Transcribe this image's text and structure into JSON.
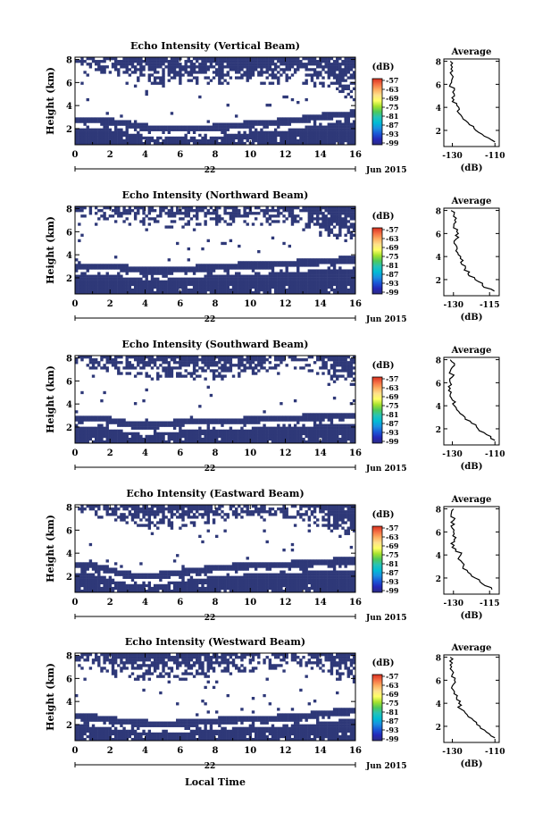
{
  "figure": {
    "x_axis_title": "Local Time",
    "colorbar_unit": "(dB)",
    "colorbar_ticks": [
      "-57",
      "-63",
      "-69",
      "-75",
      "-81",
      "-87",
      "-93",
      "-99"
    ],
    "colorbar_colors": [
      "#d7301f",
      "#f46d43",
      "#fdae61",
      "#fee08b",
      "#ffff66",
      "#a6e22e",
      "#4ec95a",
      "#27c2b6",
      "#00bcd4",
      "#1a8fe0",
      "#1a57d6",
      "#2428b8",
      "#2b2b82"
    ],
    "field_color": "#2e3878",
    "avg_title": "Average",
    "avg_xlabel": "(dB)",
    "date_left": "22",
    "date_right": "Jun 2015"
  },
  "chart_data": [
    {
      "type": "heatmap",
      "title": "Echo Intensity (Vertical Beam)",
      "xlabel": "",
      "ylabel": "Height (km)",
      "x_ticks": [
        0,
        2,
        4,
        6,
        8,
        10,
        12,
        14,
        16
      ],
      "y_ticks": [
        2,
        4,
        6,
        8
      ],
      "xlim": [
        0,
        16
      ],
      "ylim": [
        0.6,
        8.2
      ],
      "lower_layer_top_km": [
        3.0,
        3.0,
        2.9,
        2.7,
        2.4,
        2.3,
        2.3,
        2.3,
        2.4,
        2.5,
        2.7,
        2.8,
        2.9,
        3.1,
        3.3,
        3.5,
        3.6
      ],
      "upper_layer_base_km": [
        7.2,
        7.0,
        6.6,
        6.0,
        5.8,
        5.7,
        5.8,
        5.8,
        5.8,
        5.8,
        5.7,
        5.8,
        6.0,
        5.9,
        5.5,
        4.9,
        4.4
      ],
      "average_profile": {
        "x_ticks": [
          -130,
          -110
        ],
        "xlim": [
          -134,
          -108
        ],
        "y_ticks": [
          2,
          4,
          6,
          8
        ],
        "ylim": [
          0.6,
          8.2
        ],
        "height_km": [
          8.0,
          7.5,
          7.0,
          6.5,
          6.0,
          5.5,
          5.0,
          4.5,
          4.0,
          3.5,
          3.0,
          2.5,
          2.0,
          1.5,
          1.0
        ],
        "db": [
          -131,
          -130,
          -131,
          -130,
          -131,
          -129,
          -129,
          -130,
          -127,
          -127,
          -125,
          -122,
          -119,
          -115,
          -110
        ]
      }
    },
    {
      "type": "heatmap",
      "title": "Echo Intensity (Northward Beam)",
      "xlabel": "",
      "ylabel": "Height (km)",
      "x_ticks": [
        0,
        2,
        4,
        6,
        8,
        10,
        12,
        14,
        16
      ],
      "y_ticks": [
        2,
        4,
        6,
        8
      ],
      "xlim": [
        0,
        16
      ],
      "ylim": [
        0.6,
        8.2
      ],
      "lower_layer_top_km": [
        3.2,
        3.3,
        3.3,
        3.1,
        2.9,
        2.9,
        3.0,
        3.1,
        3.2,
        3.3,
        3.4,
        3.4,
        3.5,
        3.6,
        3.7,
        3.8,
        3.9
      ],
      "upper_layer_base_km": [
        7.4,
        7.1,
        6.9,
        6.6,
        6.5,
        6.4,
        6.4,
        6.5,
        6.5,
        6.6,
        6.6,
        6.6,
        6.5,
        6.2,
        5.7,
        5.4,
        5.3
      ],
      "average_profile": {
        "x_ticks": [
          -130,
          -115
        ],
        "xlim": [
          -134,
          -111
        ],
        "y_ticks": [
          2,
          4,
          6,
          8
        ],
        "ylim": [
          0.6,
          8.2
        ],
        "height_km": [
          8.0,
          7.5,
          7.0,
          6.5,
          6.0,
          5.5,
          5.0,
          4.5,
          4.0,
          3.5,
          3.0,
          2.5,
          2.0,
          1.5,
          1.0
        ],
        "db": [
          -131,
          -130,
          -129,
          -130,
          -128,
          -129,
          -129,
          -129,
          -127,
          -127,
          -125,
          -124,
          -121,
          -118,
          -113
        ]
      }
    },
    {
      "type": "heatmap",
      "title": "Echo Intensity (Southward Beam)",
      "xlabel": "",
      "ylabel": "Height (km)",
      "x_ticks": [
        0,
        2,
        4,
        6,
        8,
        10,
        12,
        14,
        16
      ],
      "y_ticks": [
        2,
        4,
        6,
        8
      ],
      "xlim": [
        0,
        16
      ],
      "ylim": [
        0.6,
        8.2
      ],
      "lower_layer_top_km": [
        3.0,
        3.1,
        2.9,
        2.6,
        2.4,
        2.5,
        2.7,
        2.8,
        2.8,
        2.8,
        2.9,
        3.0,
        3.0,
        3.1,
        3.2,
        3.3,
        3.3
      ],
      "upper_layer_base_km": [
        7.3,
        7.0,
        6.8,
        6.4,
        6.2,
        6.0,
        6.0,
        6.1,
        6.1,
        6.2,
        6.4,
        6.6,
        6.9,
        7.0,
        6.5,
        5.8,
        5.5
      ],
      "average_profile": {
        "x_ticks": [
          -130,
          -110
        ],
        "xlim": [
          -134,
          -108
        ],
        "y_ticks": [
          2,
          4,
          6,
          8
        ],
        "ylim": [
          0.6,
          8.2
        ],
        "height_km": [
          8.0,
          7.5,
          7.0,
          6.5,
          6.0,
          5.5,
          5.0,
          4.5,
          4.0,
          3.5,
          3.0,
          2.5,
          2.0,
          1.5,
          1.0
        ],
        "db": [
          -131,
          -129,
          -131,
          -130,
          -131,
          -131,
          -131,
          -130,
          -129,
          -127,
          -124,
          -121,
          -118,
          -114,
          -110
        ]
      }
    },
    {
      "type": "heatmap",
      "title": "Echo Intensity (Eastward Beam)",
      "xlabel": "",
      "ylabel": "Height (km)",
      "x_ticks": [
        0,
        2,
        4,
        6,
        8,
        10,
        12,
        14,
        16
      ],
      "y_ticks": [
        2,
        4,
        6,
        8
      ],
      "xlim": [
        0,
        16
      ],
      "ylim": [
        0.6,
        8.2
      ],
      "lower_layer_top_km": [
        3.3,
        3.2,
        2.8,
        2.4,
        2.3,
        2.4,
        2.6,
        2.8,
        3.0,
        3.1,
        3.2,
        3.3,
        3.3,
        3.4,
        3.5,
        3.6,
        3.6
      ],
      "upper_layer_base_km": [
        7.3,
        7.2,
        7.0,
        6.5,
        6.2,
        6.0,
        6.1,
        6.3,
        6.6,
        6.9,
        7.0,
        7.2,
        7.1,
        6.8,
        6.2,
        5.6,
        5.3
      ],
      "average_profile": {
        "x_ticks": [
          -130,
          -115
        ],
        "xlim": [
          -134,
          -111
        ],
        "y_ticks": [
          2,
          4,
          6,
          8
        ],
        "ylim": [
          0.6,
          8.2
        ],
        "height_km": [
          8.0,
          7.5,
          7.0,
          6.5,
          6.0,
          5.5,
          5.0,
          4.5,
          4.0,
          3.5,
          3.0,
          2.5,
          2.0,
          1.5,
          1.0
        ],
        "db": [
          -130,
          -131,
          -130,
          -131,
          -130,
          -129,
          -131,
          -129,
          -127,
          -127,
          -126,
          -124,
          -121,
          -118,
          -114
        ]
      }
    },
    {
      "type": "heatmap",
      "title": "Echo Intensity (Westward Beam)",
      "xlabel": "Local Time",
      "ylabel": "Height (km)",
      "x_ticks": [
        0,
        2,
        4,
        6,
        8,
        10,
        12,
        14,
        16
      ],
      "y_ticks": [
        2,
        4,
        6,
        8
      ],
      "xlim": [
        0,
        16
      ],
      "ylim": [
        0.6,
        8.2
      ],
      "lower_layer_top_km": [
        3.0,
        2.9,
        2.7,
        2.5,
        2.4,
        2.3,
        2.4,
        2.5,
        2.6,
        2.7,
        2.8,
        2.8,
        2.9,
        3.0,
        3.2,
        3.4,
        3.5
      ],
      "upper_layer_base_km": [
        6.9,
        6.7,
        6.3,
        6.0,
        5.8,
        5.8,
        5.9,
        6.0,
        6.1,
        6.3,
        6.5,
        6.8,
        7.0,
        6.9,
        6.3,
        5.9,
        5.6
      ],
      "average_profile": {
        "x_ticks": [
          -130,
          -110
        ],
        "xlim": [
          -134,
          -108
        ],
        "y_ticks": [
          2,
          4,
          6,
          8
        ],
        "ylim": [
          0.6,
          8.2
        ],
        "height_km": [
          8.0,
          7.5,
          7.0,
          6.5,
          6.0,
          5.5,
          5.0,
          4.5,
          4.0,
          3.5,
          3.0,
          2.5,
          2.0,
          1.5,
          1.0
        ],
        "db": [
          -131,
          -130,
          -131,
          -130,
          -129,
          -130,
          -129,
          -128,
          -127,
          -126,
          -123,
          -120,
          -117,
          -114,
          -110
        ]
      }
    }
  ]
}
